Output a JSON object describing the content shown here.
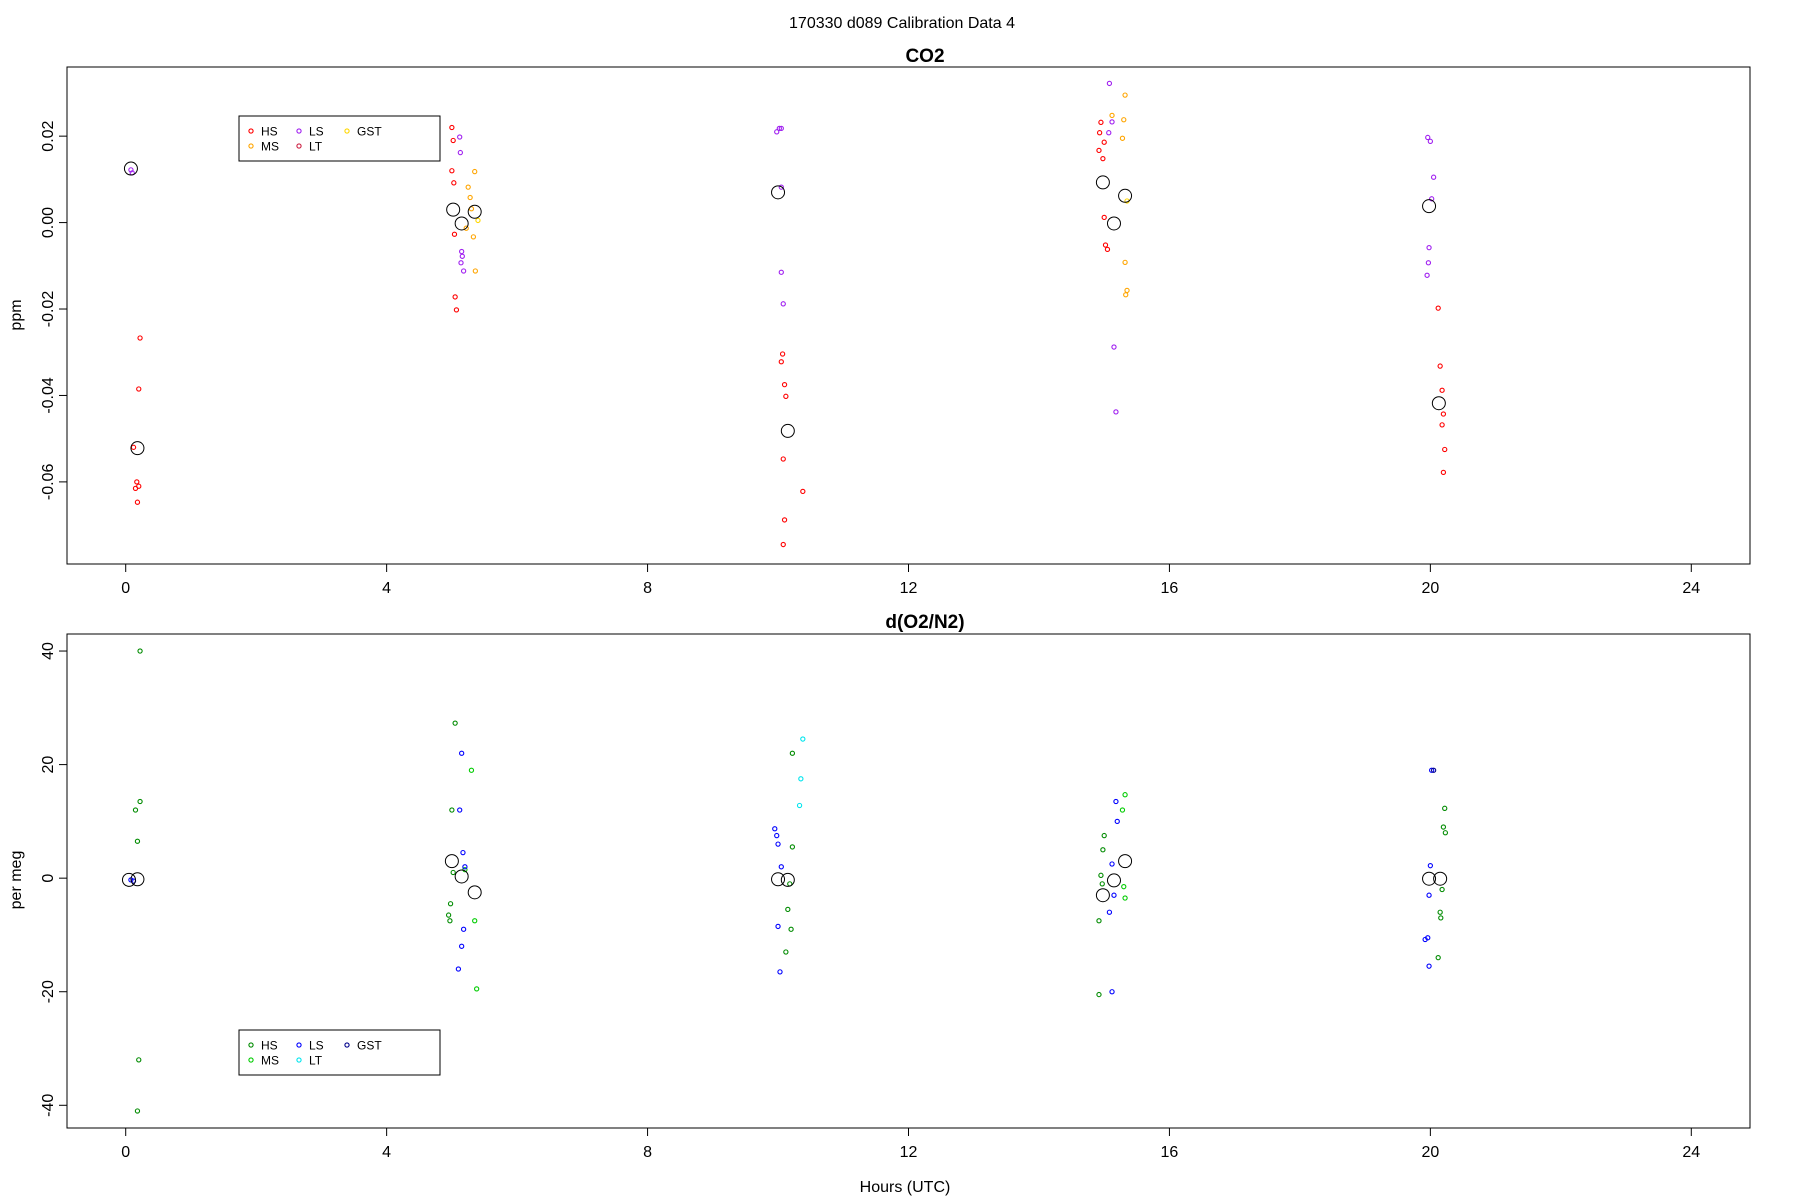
{
  "figure_title": "170330   d089   Calibration Data 4",
  "x_axis_label": "Hours (UTC)",
  "chart_data": [
    {
      "type": "scatter",
      "title": "CO2",
      "xlabel": "",
      "ylabel": "ppm",
      "xlim": [
        -0.9,
        24.9
      ],
      "ylim": [
        -0.079,
        0.036
      ],
      "x_ticks": [
        0,
        4,
        8,
        12,
        16,
        20,
        24
      ],
      "y_ticks": [
        -0.06,
        -0.04,
        -0.02,
        0.0,
        0.02
      ],
      "y_tick_labels": [
        "-0.06",
        "-0.04",
        "-0.02",
        "0.00",
        "0.02"
      ],
      "grid": false,
      "legend_position": "top-left",
      "legend": [
        {
          "label": "HS",
          "color": "#ff0000"
        },
        {
          "label": "MS",
          "color": "#ffa500"
        },
        {
          "label": "LS",
          "color": "#a020f0"
        },
        {
          "label": "LT",
          "color": "#cc2244"
        },
        {
          "label": "GST",
          "color": "#ffd700"
        }
      ],
      "series": [
        {
          "name": "HS",
          "color": "#ff0000",
          "points": [
            [
              0.22,
              -0.0267
            ],
            [
              0.2,
              -0.0385
            ],
            [
              0.12,
              -0.052
            ],
            [
              0.17,
              -0.06
            ],
            [
              0.2,
              -0.061
            ],
            [
              0.15,
              -0.0615
            ],
            [
              0.18,
              -0.0647
            ],
            [
              5.0,
              0.022
            ],
            [
              5.02,
              0.019
            ],
            [
              5.0,
              0.012
            ],
            [
              5.03,
              0.0092
            ],
            [
              5.04,
              -0.0027
            ],
            [
              5.05,
              -0.0172
            ],
            [
              5.07,
              -0.0202
            ],
            [
              10.07,
              -0.0304
            ],
            [
              10.05,
              -0.0322
            ],
            [
              10.1,
              -0.0375
            ],
            [
              10.12,
              -0.0402
            ],
            [
              10.08,
              -0.0547
            ],
            [
              10.1,
              -0.0688
            ],
            [
              10.08,
              -0.0745
            ],
            [
              10.38,
              -0.0622
            ],
            [
              14.95,
              0.0232
            ],
            [
              14.93,
              0.0208
            ],
            [
              15.0,
              0.0186
            ],
            [
              14.92,
              0.0167
            ],
            [
              14.98,
              0.0148
            ],
            [
              15.0,
              0.0012
            ],
            [
              15.02,
              -0.0052
            ],
            [
              15.05,
              -0.0062
            ],
            [
              20.12,
              -0.0198
            ],
            [
              20.15,
              -0.0332
            ],
            [
              20.18,
              -0.0388
            ],
            [
              20.2,
              -0.0443
            ],
            [
              20.18,
              -0.0468
            ],
            [
              20.22,
              -0.0525
            ],
            [
              20.2,
              -0.0578
            ]
          ]
        },
        {
          "name": "MS",
          "color": "#ffa500",
          "points": [
            [
              5.22,
              -0.0013
            ],
            [
              5.25,
              0.0082
            ],
            [
              5.28,
              0.0058
            ],
            [
              5.3,
              0.0032
            ],
            [
              5.35,
              0.0118
            ],
            [
              5.33,
              -0.0033
            ],
            [
              5.36,
              -0.0112
            ],
            [
              15.12,
              0.0248
            ],
            [
              15.3,
              0.0238
            ],
            [
              15.32,
              0.0295
            ],
            [
              15.28,
              0.0195
            ],
            [
              15.32,
              -0.0092
            ],
            [
              15.35,
              -0.0157
            ],
            [
              15.33,
              -0.0167
            ]
          ]
        },
        {
          "name": "LS",
          "color": "#a020f0",
          "points": [
            [
              0.08,
              0.0122
            ],
            [
              0.1,
              0.0115
            ],
            [
              5.12,
              0.0198
            ],
            [
              5.13,
              0.0162
            ],
            [
              5.15,
              -0.0067
            ],
            [
              5.16,
              -0.0078
            ],
            [
              5.14,
              -0.0093
            ],
            [
              5.18,
              -0.0112
            ],
            [
              9.98,
              0.021
            ],
            [
              10.02,
              0.0218
            ],
            [
              10.05,
              0.0218
            ],
            [
              10.05,
              0.0082
            ],
            [
              10.05,
              -0.0115
            ],
            [
              10.08,
              -0.0188
            ],
            [
              15.08,
              0.0322
            ],
            [
              15.12,
              0.0233
            ],
            [
              15.07,
              0.0208
            ],
            [
              15.15,
              -0.0288
            ],
            [
              15.18,
              -0.0438
            ],
            [
              19.96,
              0.0197
            ],
            [
              20.0,
              0.0188
            ],
            [
              20.05,
              0.0105
            ],
            [
              20.02,
              0.0055
            ],
            [
              19.98,
              -0.0058
            ],
            [
              19.97,
              -0.0093
            ],
            [
              19.95,
              -0.0122
            ]
          ]
        },
        {
          "name": "LT",
          "color": "#cc2244",
          "points": []
        },
        {
          "name": "GST",
          "color": "#ffd700",
          "points": [
            [
              5.4,
              0.0005
            ],
            [
              15.35,
              0.005
            ]
          ]
        },
        {
          "name": "Mean",
          "color": "#000000",
          "large": true,
          "points": [
            [
              0.08,
              0.0125
            ],
            [
              0.18,
              -0.0522
            ],
            [
              5.02,
              0.003
            ],
            [
              5.15,
              -0.0002
            ],
            [
              5.35,
              0.0025
            ],
            [
              10.0,
              0.007
            ],
            [
              10.15,
              -0.0482
            ],
            [
              14.98,
              0.0093
            ],
            [
              15.15,
              -0.0002
            ],
            [
              15.32,
              0.0062
            ],
            [
              19.98,
              0.0038
            ],
            [
              20.13,
              -0.0418
            ]
          ]
        }
      ]
    },
    {
      "type": "scatter",
      "title": "d(O2/N2)",
      "xlabel": "Hours (UTC)",
      "ylabel": "per meg",
      "xlim": [
        -0.9,
        24.9
      ],
      "ylim": [
        -44,
        43
      ],
      "x_ticks": [
        0,
        4,
        8,
        12,
        16,
        20,
        24
      ],
      "y_ticks": [
        -40,
        -20,
        0,
        20,
        40
      ],
      "y_tick_labels": [
        "-40",
        "-20",
        "0",
        "20",
        "40"
      ],
      "grid": false,
      "legend_position": "bottom-left",
      "legend": [
        {
          "label": "HS",
          "color": "#008b00"
        },
        {
          "label": "MS",
          "color": "#00cc00"
        },
        {
          "label": "LS",
          "color": "#0000ff"
        },
        {
          "label": "LT",
          "color": "#00e5ee"
        },
        {
          "label": "GST",
          "color": "#00008b"
        }
      ],
      "series": [
        {
          "name": "HS",
          "color": "#008b00",
          "points": [
            [
              0.22,
              40.0
            ],
            [
              0.22,
              13.5
            ],
            [
              0.15,
              12.0
            ],
            [
              0.18,
              6.5
            ],
            [
              0.2,
              -32.0
            ],
            [
              0.18,
              -41.0
            ],
            [
              5.05,
              27.3
            ],
            [
              5.0,
              12.0
            ],
            [
              5.02,
              1.0
            ],
            [
              4.98,
              -4.5
            ],
            [
              4.95,
              -6.5
            ],
            [
              4.97,
              -7.5
            ],
            [
              10.22,
              22.0
            ],
            [
              10.22,
              5.5
            ],
            [
              10.18,
              -1.0
            ],
            [
              10.15,
              -5.5
            ],
            [
              10.2,
              -9.0
            ],
            [
              10.12,
              -13.0
            ],
            [
              15.0,
              7.5
            ],
            [
              14.98,
              5.0
            ],
            [
              14.95,
              0.5
            ],
            [
              14.97,
              -1.0
            ],
            [
              14.92,
              -7.5
            ],
            [
              14.92,
              -20.5
            ],
            [
              20.22,
              12.3
            ],
            [
              20.2,
              9.0
            ],
            [
              20.23,
              8.0
            ],
            [
              20.18,
              -2.0
            ],
            [
              20.15,
              -6.0
            ],
            [
              20.16,
              -7.0
            ],
            [
              20.12,
              -14.0
            ]
          ]
        },
        {
          "name": "MS",
          "color": "#00cc00",
          "points": [
            [
              5.3,
              19.0
            ],
            [
              5.35,
              -7.5
            ],
            [
              5.38,
              -19.5
            ],
            [
              5.2,
              1.5
            ],
            [
              15.32,
              14.7
            ],
            [
              15.28,
              12.0
            ],
            [
              15.3,
              -1.5
            ],
            [
              15.32,
              -3.5
            ]
          ]
        },
        {
          "name": "LS",
          "color": "#0000ff",
          "points": [
            [
              0.08,
              -0.3
            ],
            [
              0.12,
              -0.5
            ],
            [
              5.15,
              22.0
            ],
            [
              5.12,
              12.0
            ],
            [
              5.17,
              4.5
            ],
            [
              5.2,
              2.0
            ],
            [
              5.18,
              -9.0
            ],
            [
              5.15,
              -12.0
            ],
            [
              5.1,
              -16.0
            ],
            [
              9.95,
              8.7
            ],
            [
              9.98,
              7.5
            ],
            [
              10.0,
              6.0
            ],
            [
              10.05,
              2.0
            ],
            [
              10.0,
              -8.5
            ],
            [
              10.03,
              -16.5
            ],
            [
              15.18,
              13.5
            ],
            [
              15.2,
              10.0
            ],
            [
              15.12,
              2.5
            ],
            [
              15.15,
              -3.0
            ],
            [
              15.08,
              -6.0
            ],
            [
              15.12,
              -20.0
            ],
            [
              20.02,
              19.0
            ],
            [
              20.0,
              2.2
            ],
            [
              19.98,
              -3.0
            ],
            [
              19.96,
              -10.5
            ],
            [
              19.92,
              -10.8
            ],
            [
              19.98,
              -15.5
            ]
          ]
        },
        {
          "name": "LT",
          "color": "#00e5ee",
          "points": [
            [
              10.38,
              24.5
            ],
            [
              10.35,
              17.5
            ],
            [
              10.33,
              12.8
            ]
          ]
        },
        {
          "name": "GST",
          "color": "#00008b",
          "points": [
            [
              20.05,
              19.0
            ]
          ]
        },
        {
          "name": "Mean",
          "color": "#000000",
          "large": true,
          "points": [
            [
              0.05,
              -0.3
            ],
            [
              0.18,
              -0.2
            ],
            [
              5.0,
              3.0
            ],
            [
              5.15,
              0.3
            ],
            [
              5.35,
              -2.5
            ],
            [
              10.0,
              -0.2
            ],
            [
              10.15,
              -0.3
            ],
            [
              14.98,
              -3.0
            ],
            [
              15.15,
              -0.4
            ],
            [
              15.32,
              3.0
            ],
            [
              19.98,
              -0.1
            ],
            [
              20.15,
              -0.1
            ]
          ]
        }
      ]
    }
  ]
}
